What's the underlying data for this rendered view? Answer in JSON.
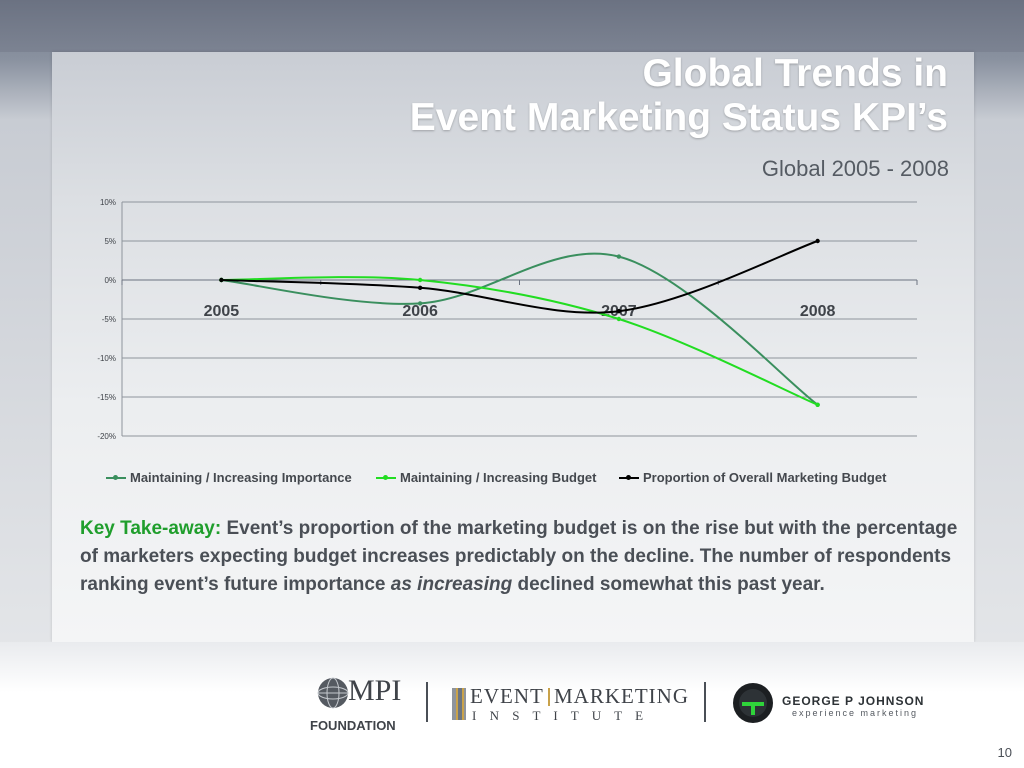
{
  "slide": {
    "title_line1": "Global Trends in",
    "title_line2": "Event Marketing Status KPI’s",
    "subtitle": "Global 2005 - 2008",
    "page_number": "10"
  },
  "takeaway": {
    "label": "Key Take-away:",
    "text1": " Event’s proportion of the marketing budget is on the rise but with the percentage of marketers expecting budget increases predictably on the decline. The number of respondents ranking event’s future importance ",
    "emphasis": "as increasing",
    "text2": " declined somewhat this past year."
  },
  "logos": {
    "mpi_text": "MPI",
    "mpi_sub": "FOUNDATION",
    "emi_line1a": "EVENT",
    "emi_line1b": "MARKETING",
    "emi_line2": "I N S T I T U T E",
    "gpj_line1": "GEORGE P JOHNSON",
    "gpj_line2": "experience marketing"
  },
  "colors": {
    "importance": "#3a8f5e",
    "budget": "#22dd22",
    "proportion": "#000000",
    "grid": "#8e949c",
    "takeaway_label": "#1f9e2c"
  },
  "chart_data": {
    "type": "line",
    "categories": [
      "2005",
      "2006",
      "2007",
      "2008"
    ],
    "ylim": [
      -20,
      10
    ],
    "y_ticks": [
      "10%",
      "5%",
      "0%",
      "-5%",
      "-10%",
      "-15%",
      "-20%"
    ],
    "y_tick_values": [
      10,
      5,
      0,
      -5,
      -10,
      -15,
      -20
    ],
    "grid": true,
    "legend_position": "bottom",
    "series": [
      {
        "name": "Maintaining / Increasing Importance",
        "values": [
          0,
          -3,
          3,
          -16
        ]
      },
      {
        "name": "Maintaining / Increasing Budget",
        "values": [
          0,
          0,
          -5,
          -16
        ]
      },
      {
        "name": "Proportion of Overall Marketing Budget",
        "values": [
          0,
          -1,
          -4,
          5
        ]
      }
    ]
  }
}
